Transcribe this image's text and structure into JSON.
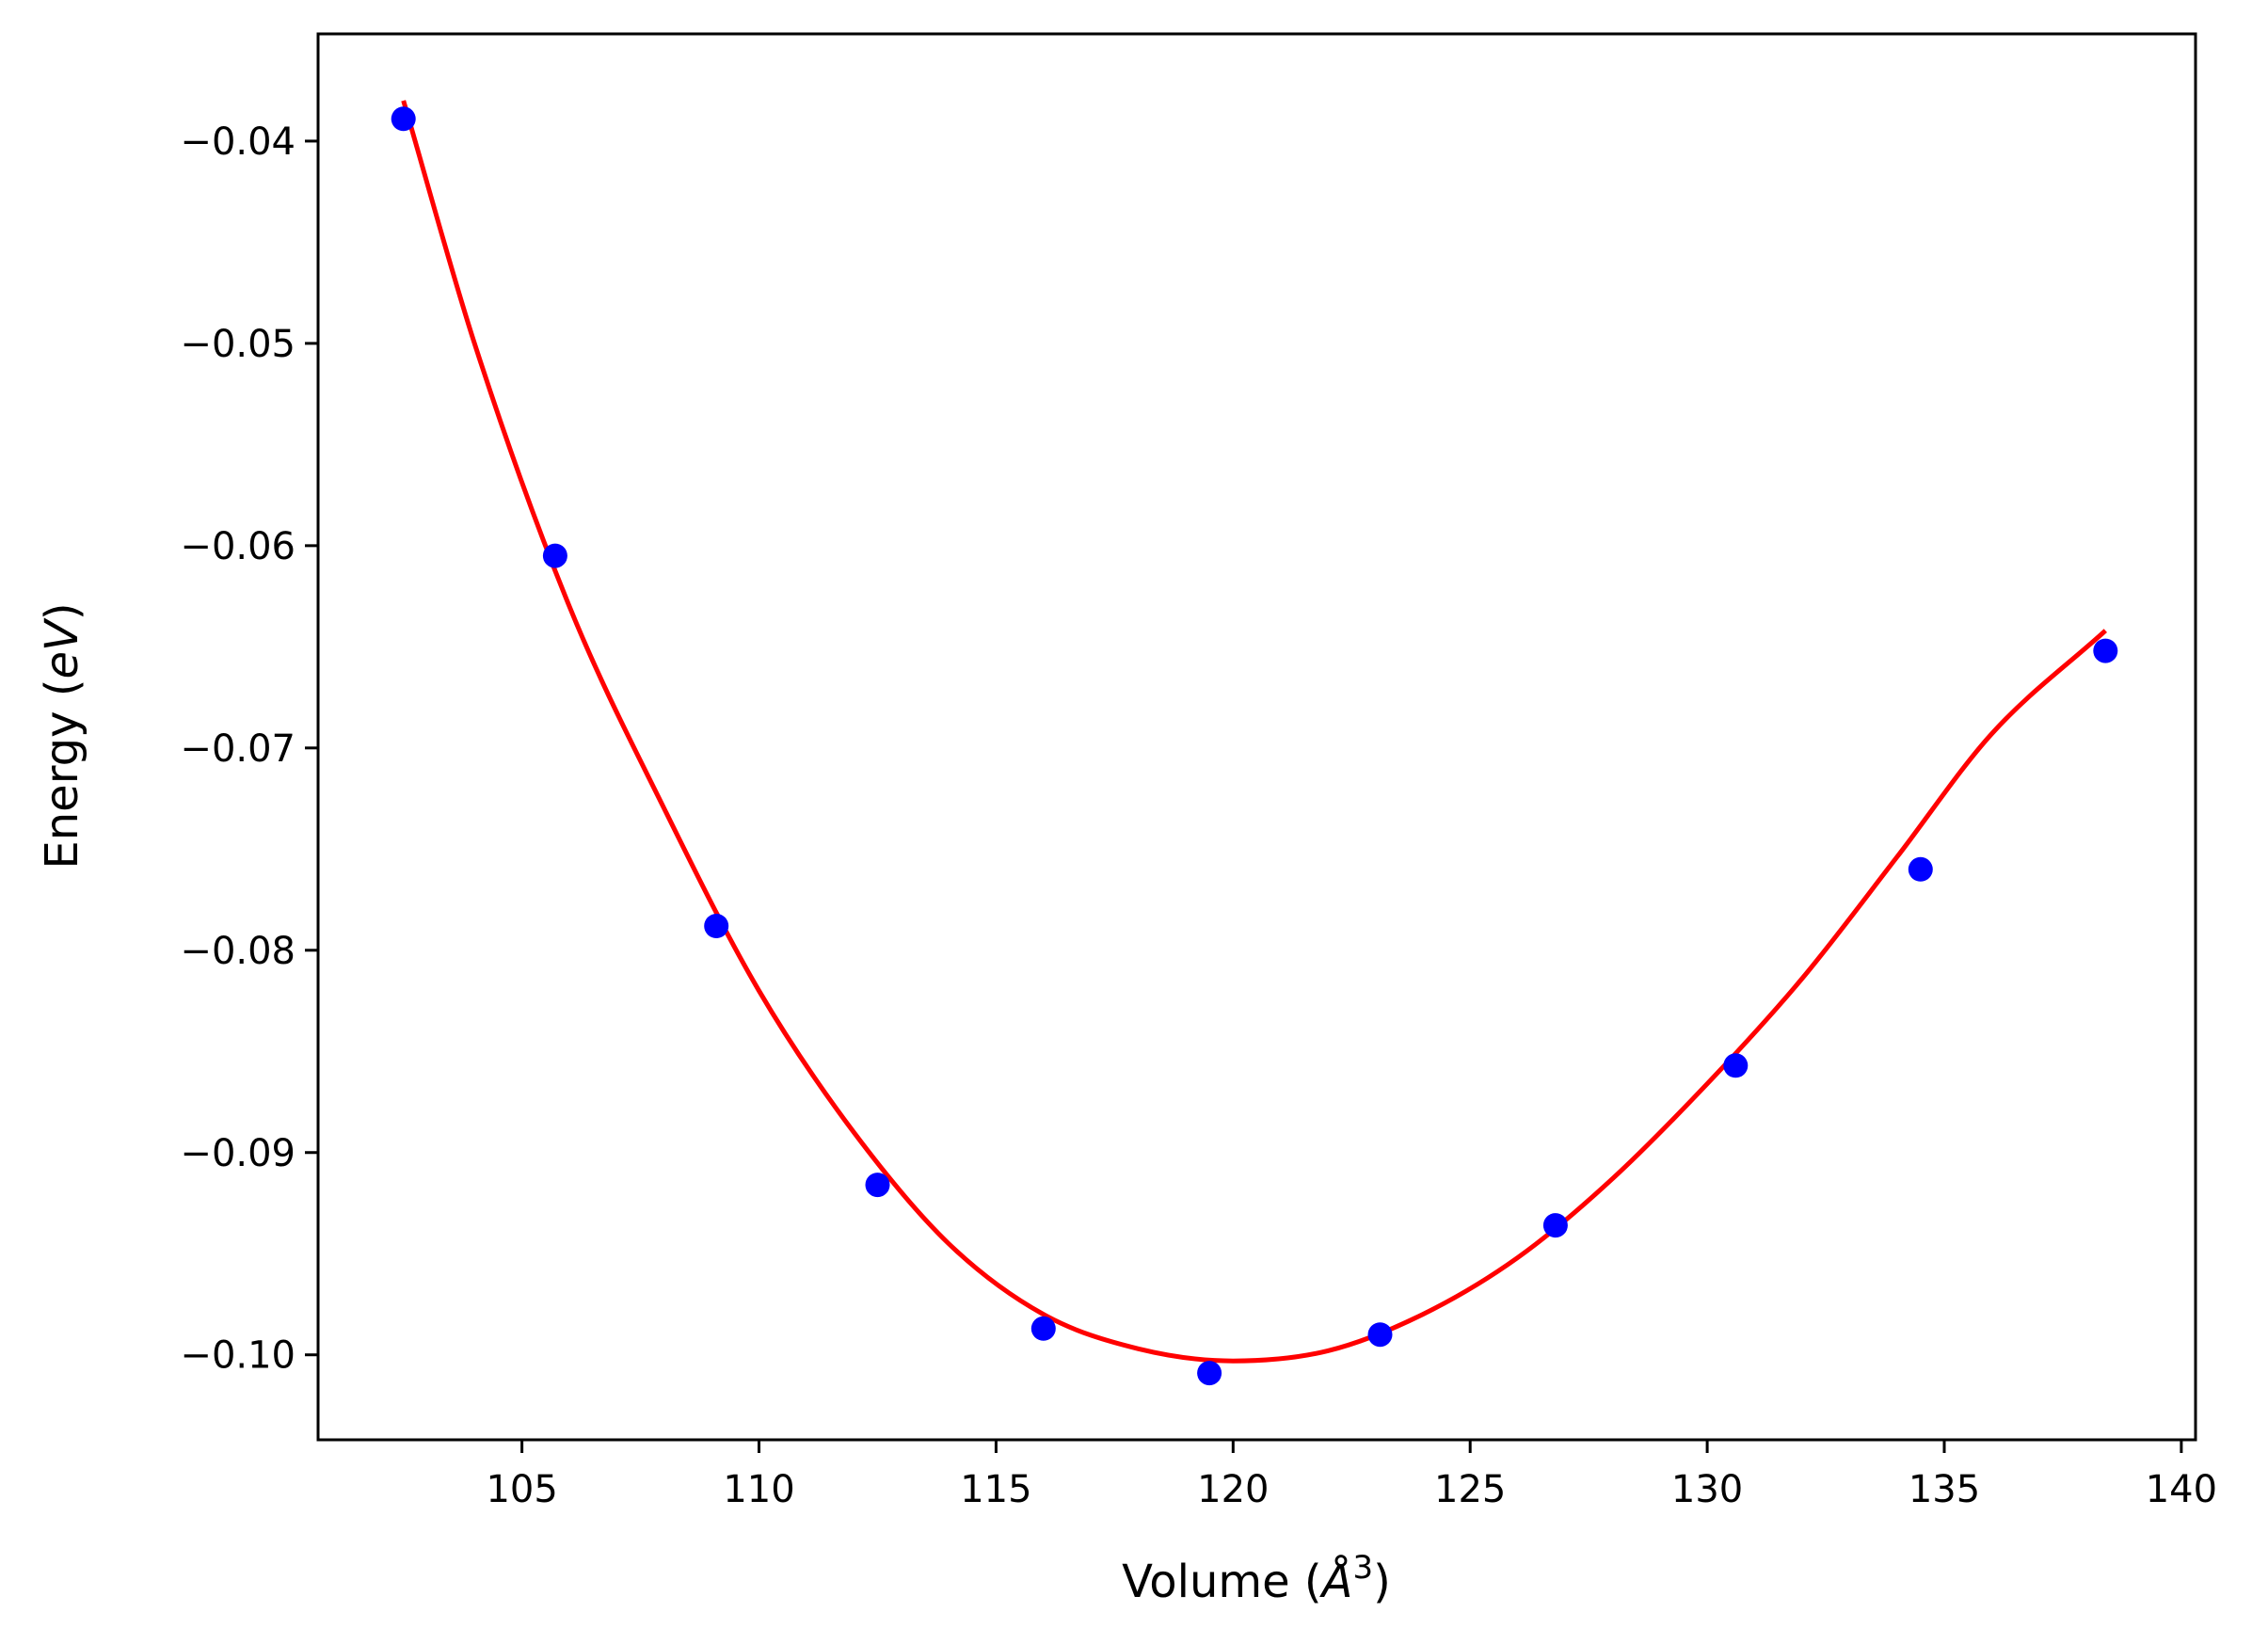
{
  "chart_data": {
    "type": "scatter",
    "title": "",
    "xlabel": {
      "prefix": "Volume (",
      "unit": "Å",
      "superscript": "3",
      "suffix": ")"
    },
    "ylabel": {
      "prefix": "Energy (",
      "unit": "eV",
      "suffix": ")"
    },
    "xlim": [
      100.7,
      140.3
    ],
    "ylim": [
      -0.1042,
      -0.0347
    ],
    "x_ticks": [
      105,
      110,
      115,
      120,
      125,
      130,
      135,
      140
    ],
    "x_tick_labels": [
      "105",
      "110",
      "115",
      "120",
      "125",
      "130",
      "135",
      "140"
    ],
    "y_ticks": [
      -0.04,
      -0.05,
      -0.06,
      -0.07,
      -0.08,
      -0.09,
      -0.1
    ],
    "y_tick_labels": [
      "−0.04",
      "−0.05",
      "−0.06",
      "−0.07",
      "−0.08",
      "−0.09",
      "−0.10"
    ],
    "grid": false,
    "legend": "none",
    "series": [
      {
        "kind": "points",
        "color": "#0000ff",
        "x": [
          102.5,
          105.7,
          109.1,
          112.5,
          116.0,
          119.5,
          123.1,
          126.8,
          130.6,
          134.5,
          138.4
        ],
        "y": [
          -0.0389,
          -0.0605,
          -0.0788,
          -0.0916,
          -0.0987,
          -0.1009,
          -0.099,
          -0.0936,
          -0.0857,
          -0.076,
          -0.0652
        ]
      },
      {
        "kind": "fit-line",
        "color": "#ff0000",
        "x": [
          102.5,
          104.0,
          106.0,
          108.0,
          110.0,
          112.0,
          114.0,
          116.0,
          118.0,
          120.0,
          122.0,
          124.0,
          126.0,
          128.0,
          130.0,
          132.0,
          134.0,
          136.0,
          138.4
        ],
        "y": [
          -0.038,
          -0.05,
          -0.063,
          -0.073,
          -0.082,
          -0.089,
          -0.0945,
          -0.098,
          -0.0997,
          -0.1003,
          -0.0998,
          -0.098,
          -0.0952,
          -0.0913,
          -0.0866,
          -0.0814,
          -0.0754,
          -0.0693,
          -0.0642
        ]
      }
    ]
  }
}
